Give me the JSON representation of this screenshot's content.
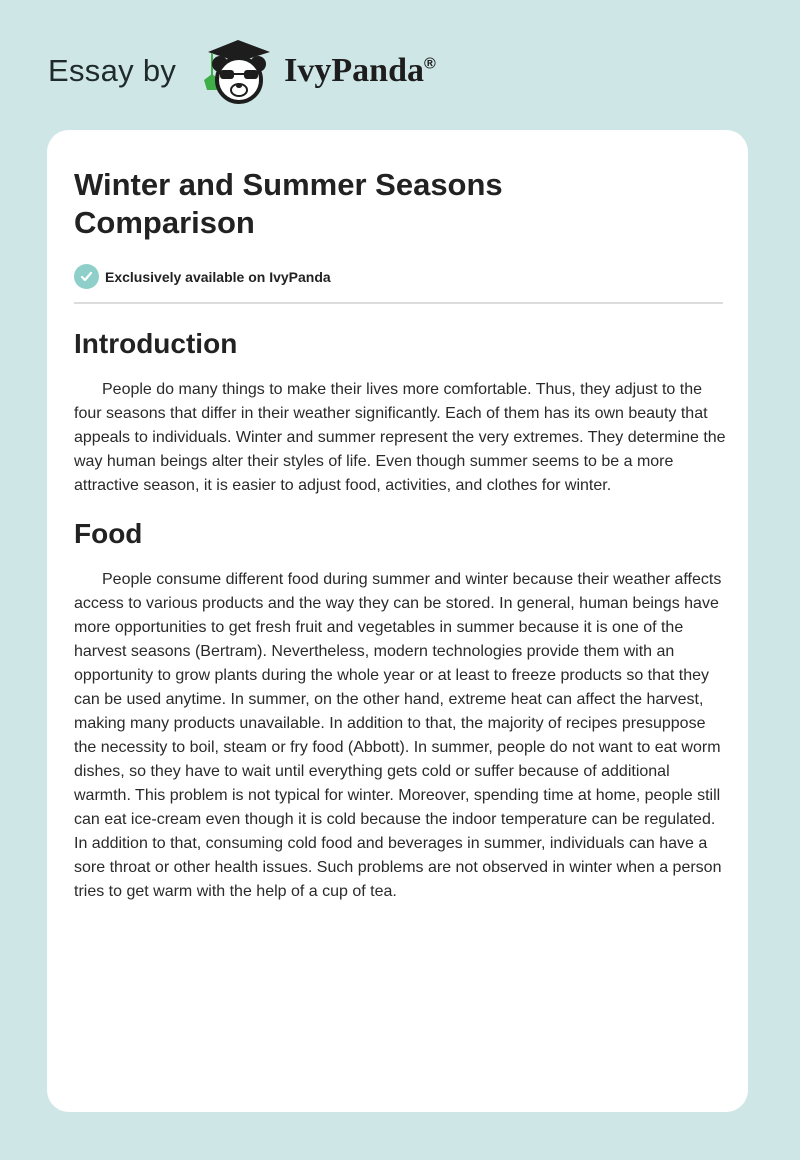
{
  "header": {
    "essay_by": "Essay by",
    "brand": "IvyPanda",
    "registered": "®"
  },
  "article": {
    "title": "Winter and Summer Seasons Comparison",
    "badge": "Exclusively available on IvyPanda",
    "sections": [
      {
        "heading": "Introduction",
        "text": "People do many things to make their lives more comfortable. Thus, they adjust to the four seasons that differ in their weather significantly. Each of them has its own beauty that appeals to individuals. Winter and summer represent the very extremes. They determine the way human beings alter their styles of life. Even though summer seems to be a more attractive season, it is easier to adjust food, activities, and clothes for winter."
      },
      {
        "heading": "Food",
        "text": "People consume different food during summer and winter because their weather affects access to various products and the way they can be stored. In general, human beings have more opportunities to get fresh fruit and vegetables in summer because it is one of the harvest seasons (Bertram). Nevertheless, modern technologies provide them with an opportunity to grow plants during the whole year or at least to freeze products so that they can be used anytime. In summer, on the other hand, extreme heat can affect the harvest, making many products unavailable. In addition to that, the majority of recipes presuppose the necessity to boil, steam or fry food (Abbott). In summer, people do not want to eat worm dishes, so they have to wait until everything gets cold or suffer because of additional warmth. This problem is not typical for winter. Moreover, spending time at home, people still can eat ice-cream even though it is cold because the indoor temperature can be regulated. In addition to that, consuming cold food and beverages in summer, individuals can have a sore throat or other health issues. Such problems are not observed in winter when a person tries to get warm with the help of a cup of tea."
      }
    ]
  },
  "colors": {
    "background": "#cfe6e7",
    "badge": "#8fcfc9",
    "ivy": "#3fae49"
  }
}
